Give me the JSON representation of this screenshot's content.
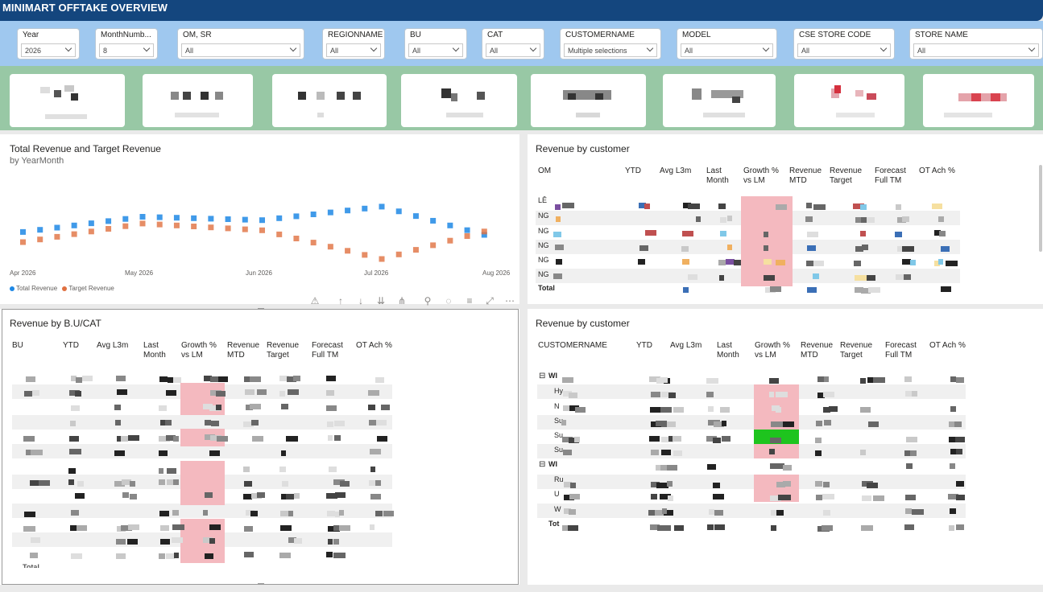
{
  "header": {
    "title": "MINIMART OFFTAKE  OVERVIEW"
  },
  "colors": {
    "title_bar": "#14467e",
    "filter_band": "#9fc8ef",
    "kpi_band": "#98c8a5",
    "total_revenue": "#1e88e5",
    "target_revenue": "#e07040",
    "growth_negative": "#f4b9bf",
    "growth_positive": "#1ec41e"
  },
  "filters": [
    {
      "label": "Year",
      "value": "2026"
    },
    {
      "label": "MonthNumb...",
      "value": "8"
    },
    {
      "label": "OM, SR",
      "value": "All"
    },
    {
      "label": "REGIONNAME",
      "value": "All"
    },
    {
      "label": "BU",
      "value": "All"
    },
    {
      "label": "CAT",
      "value": "All"
    },
    {
      "label": "CUSTOMERNAME",
      "value": "Multiple selections"
    },
    {
      "label": "MODEL",
      "value": "All"
    },
    {
      "label": "CSE STORE CODE",
      "value": "All"
    },
    {
      "label": "STORE NAME",
      "value": "All"
    }
  ],
  "line_chart": {
    "title": "Total Revenue and Target Revenue",
    "subtitle": "by YearMonth",
    "x_ticks": [
      "Apr 2026",
      "May 2026",
      "Jun 2026",
      "Jul 2026",
      "Aug 2026"
    ],
    "legend": [
      "Total Revenue",
      "Target Revenue"
    ]
  },
  "chart_data": {
    "type": "line",
    "title": "Total Revenue and Target Revenue",
    "subtitle": "by YearMonth",
    "x": [
      "Apr 2026",
      "May 2026",
      "Jun 2026",
      "Jul 2026",
      "Aug 2026"
    ],
    "series": [
      {
        "name": "Total Revenue",
        "values": [
          42,
          60,
          56,
          72,
          33
        ]
      },
      {
        "name": "Target Revenue",
        "values": [
          30,
          52,
          44,
          10,
          48
        ]
      }
    ],
    "ylim": [
      0,
      100
    ]
  },
  "cust_om": {
    "title": "Revenue by customer",
    "headers": [
      "OM",
      "YTD",
      "Avg L3m",
      "Last\nMonth",
      "Growth %\nvs LM",
      "Revenue\nMTD",
      "Revenue\nTarget",
      "Forecast\nFull TM",
      "OT Ach %"
    ],
    "rows": [
      "LÊ",
      "NG",
      "NG",
      "NG",
      "NG",
      "NG"
    ],
    "total": "Total"
  },
  "bu_cat": {
    "title": "Revenue by B.U/CAT",
    "headers": [
      "BU",
      "YTD",
      "Avg L3m",
      "Last\nMonth",
      "Growth %\nvs LM",
      "Revenue\nMTD",
      "Revenue\nTarget",
      "Forecast\nFull TM",
      "OT Ach %"
    ],
    "total": "Total"
  },
  "cust_name": {
    "title": "Revenue by customer",
    "headers": [
      "CUSTOMERNAME",
      "YTD",
      "Avg L3m",
      "Last\nMonth",
      "Growth %\nvs LM",
      "Revenue\nMTD",
      "Revenue\nTarget",
      "Forecast\nFull TM",
      "OT Ach %"
    ],
    "groups": [
      {
        "label": "WI",
        "rows": [
          "Hy",
          "N",
          "Su",
          "Su",
          "Su"
        ]
      },
      {
        "label": "WI",
        "rows": [
          "Ru",
          "U",
          "W"
        ]
      }
    ],
    "total": "Tot"
  },
  "visual_header_icons": [
    "warning-icon",
    "drill-up-icon",
    "drill-down-icon",
    "expand-all-icon",
    "hierarchy-icon",
    "pin-icon",
    "alert-icon",
    "filter-icon",
    "focus-mode-icon",
    "more-options-icon"
  ]
}
